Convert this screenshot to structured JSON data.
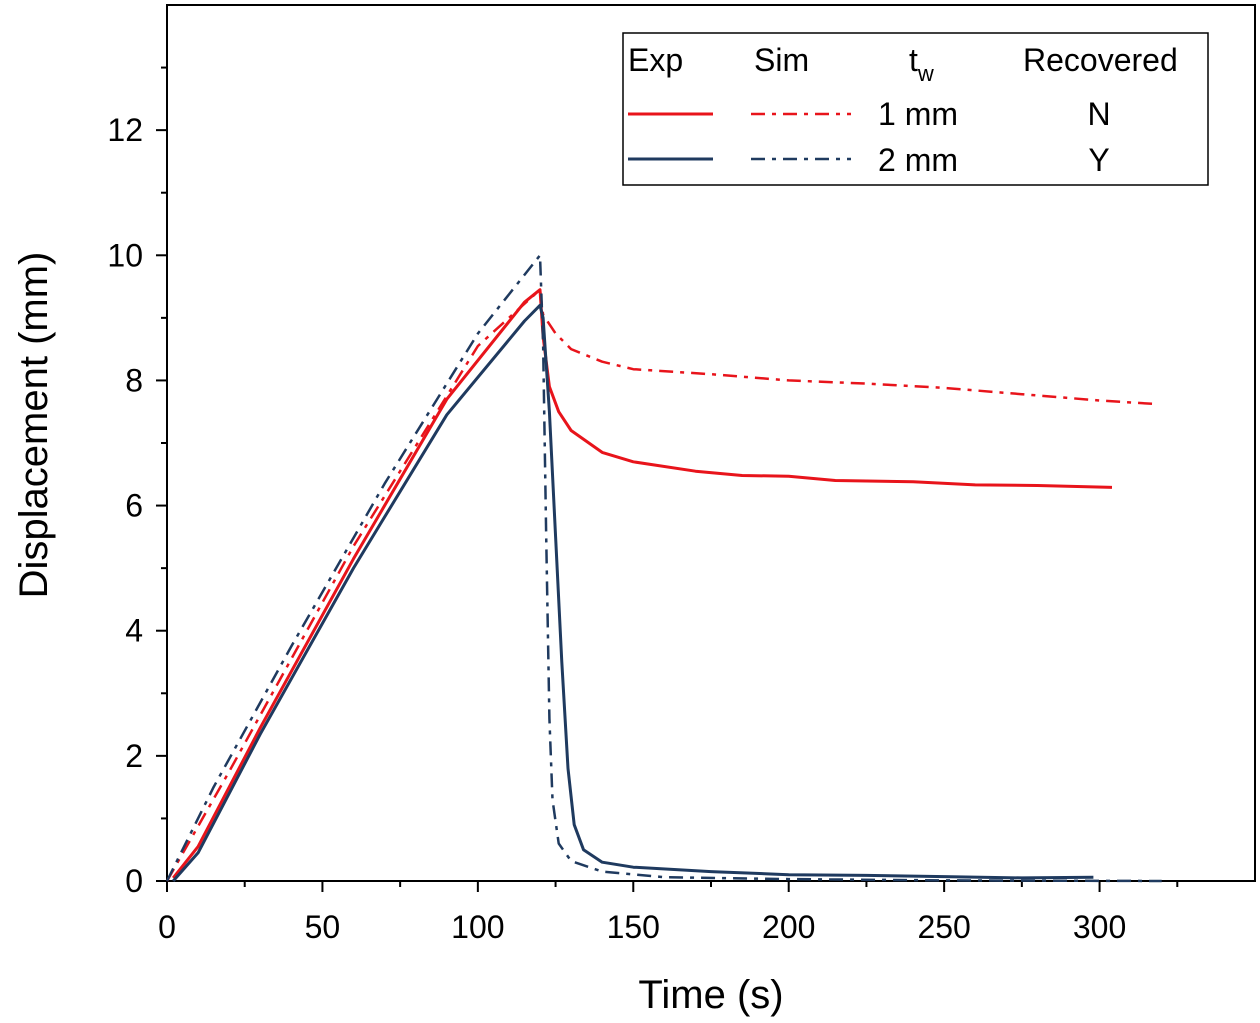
{
  "chart_data": {
    "type": "line",
    "title": "",
    "xlabel": "Time (s)",
    "ylabel": "Displacement (mm)",
    "xlim": [
      0,
      350
    ],
    "ylim": [
      0,
      14
    ],
    "x_ticks": [
      0,
      50,
      100,
      150,
      200,
      250,
      300
    ],
    "y_ticks": [
      0,
      2,
      4,
      6,
      8,
      10,
      12
    ],
    "legend": {
      "position": "top-right",
      "headers": {
        "exp": "Exp",
        "sim": "Sim",
        "tw_main": "t",
        "tw_sub": "w",
        "recovered": "Recovered"
      },
      "rows": [
        {
          "tw": "1 mm",
          "recovered": "N"
        },
        {
          "tw": "2 mm",
          "recovered": "Y"
        }
      ]
    },
    "series": [
      {
        "name": "Exp 1 mm",
        "color": "#e8141b",
        "style": "solid",
        "points": [
          [
            2,
            0.05
          ],
          [
            10,
            0.55
          ],
          [
            30,
            2.45
          ],
          [
            60,
            5.15
          ],
          [
            90,
            7.7
          ],
          [
            115,
            9.25
          ],
          [
            120,
            9.45
          ],
          [
            121,
            8.7
          ],
          [
            123,
            7.9
          ],
          [
            126,
            7.5
          ],
          [
            130,
            7.2
          ],
          [
            140,
            6.85
          ],
          [
            150,
            6.7
          ],
          [
            170,
            6.55
          ],
          [
            185,
            6.48
          ],
          [
            200,
            6.47
          ],
          [
            215,
            6.4
          ],
          [
            240,
            6.38
          ],
          [
            260,
            6.33
          ],
          [
            280,
            6.32
          ],
          [
            304,
            6.29
          ]
        ]
      },
      {
        "name": "Sim 1 mm",
        "color": "#e8141b",
        "style": "dashdot",
        "points": [
          [
            0,
            0
          ],
          [
            20,
            1.75
          ],
          [
            60,
            5.35
          ],
          [
            100,
            8.55
          ],
          [
            120,
            9.45
          ],
          [
            121,
            9.05
          ],
          [
            125,
            8.75
          ],
          [
            130,
            8.5
          ],
          [
            140,
            8.3
          ],
          [
            150,
            8.18
          ],
          [
            175,
            8.1
          ],
          [
            200,
            8.0
          ],
          [
            225,
            7.95
          ],
          [
            250,
            7.88
          ],
          [
            275,
            7.78
          ],
          [
            300,
            7.68
          ],
          [
            319,
            7.62
          ]
        ]
      },
      {
        "name": "Exp 2 mm",
        "color": "#1f3a5f",
        "style": "solid",
        "points": [
          [
            2,
            0
          ],
          [
            10,
            0.45
          ],
          [
            30,
            2.35
          ],
          [
            60,
            5.0
          ],
          [
            90,
            7.45
          ],
          [
            115,
            8.95
          ],
          [
            120,
            9.2
          ],
          [
            121,
            9.0
          ],
          [
            123,
            7.5
          ],
          [
            125,
            5.5
          ],
          [
            127,
            3.5
          ],
          [
            129,
            1.8
          ],
          [
            131,
            0.9
          ],
          [
            134,
            0.5
          ],
          [
            140,
            0.3
          ],
          [
            150,
            0.22
          ],
          [
            175,
            0.15
          ],
          [
            200,
            0.1
          ],
          [
            225,
            0.09
          ],
          [
            250,
            0.07
          ],
          [
            275,
            0.05
          ],
          [
            298,
            0.06
          ]
        ]
      },
      {
        "name": "Sim 2 mm",
        "color": "#1f3a5f",
        "style": "dashdot",
        "points": [
          [
            0,
            0
          ],
          [
            15,
            1.5
          ],
          [
            40,
            3.75
          ],
          [
            70,
            6.35
          ],
          [
            100,
            8.75
          ],
          [
            120,
            10.0
          ],
          [
            121,
            8.6
          ],
          [
            122,
            5.5
          ],
          [
            123,
            2.6
          ],
          [
            124,
            1.3
          ],
          [
            126,
            0.6
          ],
          [
            130,
            0.32
          ],
          [
            140,
            0.15
          ],
          [
            160,
            0.06
          ],
          [
            200,
            0.03
          ],
          [
            250,
            0.01
          ],
          [
            320,
            0.0
          ]
        ]
      }
    ]
  }
}
